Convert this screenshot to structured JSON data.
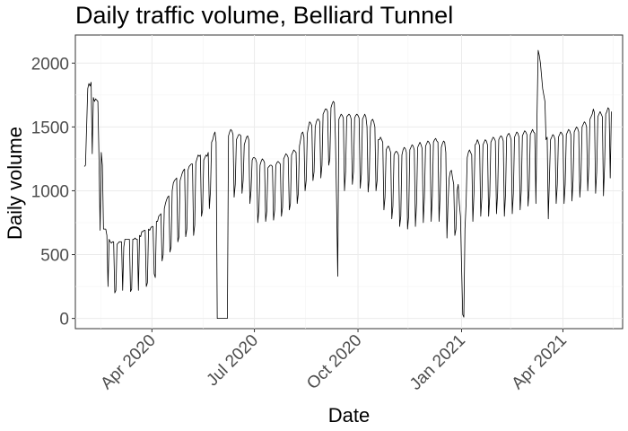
{
  "chart_data": {
    "type": "line",
    "title": "Daily traffic volume, Belliard Tunnel",
    "xlabel": "Date",
    "ylabel": "Daily volume",
    "x_range": [
      "2020-01-24",
      "2021-05-24"
    ],
    "ylim": [
      -80,
      2220
    ],
    "y_ticks": [
      0,
      500,
      1000,
      1500,
      2000
    ],
    "y_tick_labels": [
      "0",
      "500",
      "1000",
      "1500",
      "2000"
    ],
    "x_ticks": [
      "2020-04-01",
      "2020-07-01",
      "2020-10-01",
      "2021-01-01",
      "2021-04-01"
    ],
    "x_tick_labels": [
      "Apr 2020",
      "Jul 2020",
      "Oct 2020",
      "Jan 2021",
      "Apr 2021"
    ],
    "grid": true,
    "line_color": "#000000",
    "series": [
      {
        "start_date": "2020-02-01",
        "values": [
          1190,
          1200,
          1500,
          1800,
          1840,
          1820,
          1850,
          1290,
          1730,
          1700,
          1720,
          1710,
          1700,
          1250,
          690,
          1300,
          1200,
          700,
          700,
          700,
          650,
          250,
          620,
          600,
          590,
          600,
          600,
          200,
          220,
          580,
          590,
          600,
          600,
          600,
          220,
          560,
          620,
          620,
          620,
          620,
          620,
          210,
          230,
          620,
          620,
          630,
          620,
          620,
          220,
          650,
          640,
          680,
          680,
          690,
          690,
          250,
          280,
          700,
          690,
          710,
          720,
          720,
          350,
          320,
          760,
          760,
          800,
          810,
          820,
          450,
          500,
          860,
          900,
          930,
          950,
          960,
          520,
          560,
          1000,
          1060,
          1080,
          1090,
          1100,
          600,
          640,
          1080,
          1110,
          1140,
          1160,
          1170,
          640,
          700,
          1160,
          1190,
          1200,
          1210,
          1210,
          650,
          730,
          1220,
          1250,
          1280,
          1270,
          1280,
          800,
          850,
          1240,
          1260,
          1280,
          1270,
          1300,
          860,
          1000,
          1380,
          1400,
          1440,
          1460,
          1380,
          0,
          0,
          0,
          0,
          0,
          0,
          0,
          0,
          0,
          0,
          1430,
          1460,
          1480,
          1470,
          1440,
          950,
          1050,
          1400,
          1420,
          1440,
          1440,
          1430,
          980,
          1080,
          1360,
          1390,
          1420,
          1430,
          1400,
          900,
          1000,
          1240,
          1260,
          1260,
          1250,
          1220,
          750,
          850,
          1200,
          1230,
          1250,
          1240,
          1220,
          760,
          840,
          1180,
          1190,
          1200,
          1200,
          1190,
          770,
          850,
          1200,
          1220,
          1230,
          1220,
          1210,
          800,
          870,
          1250,
          1270,
          1290,
          1280,
          1260,
          850,
          900,
          1280,
          1300,
          1320,
          1310,
          1300,
          900,
          980,
          1350,
          1400,
          1450,
          1460,
          1420,
          1000,
          1080,
          1450,
          1500,
          1540,
          1530,
          1510,
          1080,
          1150,
          1500,
          1540,
          1560,
          1560,
          1540,
          1100,
          1200,
          1600,
          1620,
          1640,
          1640,
          1620,
          1200,
          1250,
          1650,
          1680,
          1700,
          1690,
          1400,
          900,
          330,
          1560,
          1580,
          1600,
          1590,
          1570,
          1000,
          1150,
          1580,
          1590,
          1600,
          1590,
          1560,
          1050,
          1150,
          1570,
          1590,
          1600,
          1590,
          1570,
          1020,
          1130,
          1560,
          1580,
          1600,
          1580,
          1500,
          990,
          1100,
          1500,
          1550,
          1560,
          1540,
          1500,
          1000,
          1080,
          1400,
          1400,
          1420,
          1400,
          1380,
          850,
          950,
          1320,
          1340,
          1350,
          1330,
          1300,
          780,
          880,
          1280,
          1300,
          1310,
          1300,
          1280,
          720,
          800,
          1280,
          1320,
          1340,
          1330,
          1300,
          700,
          800,
          1320,
          1340,
          1360,
          1350,
          1320,
          720,
          900,
          1340,
          1360,
          1380,
          1360,
          1330,
          750,
          950,
          1350,
          1370,
          1390,
          1380,
          1360,
          760,
          960,
          1380,
          1400,
          1410,
          1390,
          1380,
          760,
          980,
          1340,
          1370,
          1390,
          1380,
          1300,
          630,
          920,
          1100,
          1150,
          1160,
          1100,
          1050,
          650,
          700,
          1000,
          1050,
          900,
          800,
          400,
          30,
          10,
          700,
          900,
          1260,
          1300,
          1320,
          1300,
          1280,
          760,
          980,
          1360,
          1370,
          1400,
          1380,
          1350,
          800,
          950,
          1360,
          1380,
          1400,
          1390,
          1360,
          800,
          960,
          1380,
          1400,
          1420,
          1410,
          1390,
          820,
          980,
          1400,
          1420,
          1430,
          1420,
          1390,
          800,
          970,
          1420,
          1440,
          1450,
          1430,
          1400,
          820,
          980,
          1420,
          1440,
          1460,
          1450,
          1420,
          850,
          1000,
          1430,
          1450,
          1470,
          1460,
          1440,
          880,
          1010,
          1440,
          1460,
          1480,
          1460,
          1450,
          900,
          1600,
          2100,
          2060,
          2000,
          1900,
          1800,
          1750,
          1700,
          1400,
          1420,
          780,
          1100,
          1400,
          1420,
          1440,
          1430,
          1400,
          900,
          1050,
          1420,
          1440,
          1460,
          1450,
          1430,
          900,
          1050,
          1440,
          1460,
          1480,
          1470,
          1440,
          920,
          1080,
          1460,
          1480,
          1500,
          1490,
          1460,
          950,
          1100,
          1500,
          1520,
          1540,
          1530,
          1500,
          1000,
          1200,
          1560,
          1580,
          1600,
          1640,
          1610,
          980,
          1150,
          1580,
          1600,
          1620,
          1600,
          1580,
          960,
          1200,
          1600,
          1620,
          1650,
          1640,
          1100,
          1620
        ]
      }
    ]
  }
}
